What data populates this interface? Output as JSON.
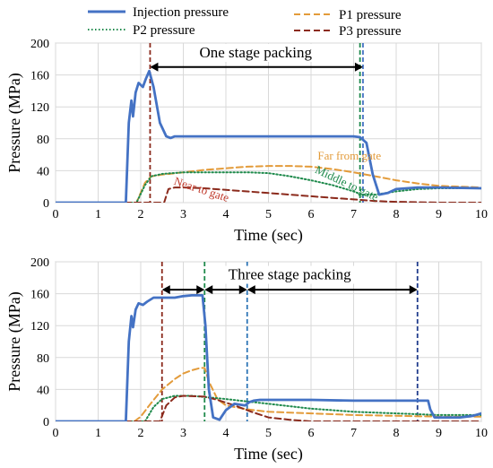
{
  "legend": {
    "items": [
      {
        "label": "Injection pressure",
        "color": "#4472c4",
        "style": "solid"
      },
      {
        "label": "P1 pressure",
        "color": "#e39b3a",
        "style": "dashed"
      },
      {
        "label": "P2 pressure",
        "color": "#1f8a4c",
        "style": "dotted"
      },
      {
        "label": "P3 pressure",
        "color": "#8b2a1c",
        "style": "dashed"
      }
    ]
  },
  "chart_data": [
    {
      "type": "line",
      "xlabel": "Time (sec)",
      "ylabel": "Pressure (MPa)",
      "xlim": [
        0,
        10
      ],
      "ylim": [
        0,
        200
      ],
      "xticks": [
        "0",
        "1",
        "2",
        "3",
        "4",
        "5",
        "6",
        "7",
        "8",
        "9",
        "10"
      ],
      "yticks": [
        "0",
        "40",
        "80",
        "120",
        "160",
        "200"
      ],
      "grid": true,
      "series": [
        {
          "name": "Injection pressure",
          "color": "#4472c4",
          "x": [
            0,
            1.65,
            1.72,
            1.78,
            1.82,
            1.88,
            1.95,
            2.05,
            2.12,
            2.2,
            2.3,
            2.45,
            2.6,
            2.7,
            2.8,
            3,
            4,
            5,
            6,
            7,
            7.15,
            7.3,
            7.45,
            7.6,
            7.8,
            8,
            8.5,
            9,
            10
          ],
          "y": [
            0,
            0,
            100,
            128,
            108,
            138,
            150,
            145,
            155,
            165,
            145,
            100,
            83,
            81,
            83,
            83,
            83,
            83,
            83,
            83,
            82,
            75,
            35,
            10,
            12,
            17,
            19,
            19,
            18
          ]
        },
        {
          "name": "P1 pressure",
          "color": "#e39b3a",
          "x": [
            0,
            1.9,
            2.1,
            2.25,
            2.5,
            3,
            3.5,
            4,
            4.5,
            5,
            5.5,
            6,
            6.5,
            7,
            7.5,
            8,
            8.5,
            9,
            10
          ],
          "y": [
            0,
            0,
            25,
            33,
            35,
            38,
            41,
            43,
            45,
            46,
            46,
            45,
            42,
            38,
            33,
            28,
            24,
            21,
            19
          ]
        },
        {
          "name": "P2 pressure",
          "color": "#1f8a4c",
          "x": [
            0,
            1.9,
            2.1,
            2.25,
            2.5,
            3,
            3.5,
            4,
            4.5,
            5,
            5.5,
            6,
            6.5,
            7,
            7.2,
            7.5,
            8,
            8.5,
            9,
            10
          ],
          "y": [
            0,
            0,
            22,
            33,
            36,
            38,
            38,
            38,
            38,
            37,
            33,
            28,
            22,
            14,
            10,
            10,
            14,
            17,
            18,
            18
          ]
        },
        {
          "name": "P3 pressure",
          "color": "#8b2a1c",
          "x": [
            0,
            2.55,
            2.65,
            2.8,
            3,
            3.5,
            4,
            4.5,
            5,
            5.5,
            6,
            6.5,
            7,
            7.5,
            8,
            9,
            10
          ],
          "y": [
            0,
            0,
            17,
            19,
            19,
            18,
            16,
            14,
            12,
            10,
            8,
            6,
            4,
            2,
            1,
            0,
            0
          ]
        }
      ],
      "vlines": [
        {
          "x": 2.22,
          "color": "#8b2a1c"
        },
        {
          "x": 7.15,
          "color": "#1f8a4c"
        },
        {
          "x": 7.22,
          "color": "#4472c4"
        }
      ],
      "arrows": [
        {
          "x1": 2.22,
          "x2": 7.22,
          "y": 170
        }
      ],
      "annotations": [
        {
          "text": "One stage packing",
          "x": 4.7,
          "y": 182,
          "color": "#000000",
          "rotate": 0
        },
        {
          "text": "Far from gate",
          "x": 6.9,
          "y": 54,
          "color": "#e39b3a",
          "rotate": 0
        },
        {
          "text": "Middle to gate",
          "x": 6.8,
          "y": 20,
          "color": "#1f8a4c",
          "rotate": 25
        },
        {
          "text": "Near to gate",
          "x": 3.4,
          "y": 12,
          "color": "#c0392b",
          "rotate": 18
        }
      ]
    },
    {
      "type": "line",
      "xlabel": "Time (sec)",
      "ylabel": "Pressure (MPa)",
      "xlim": [
        0,
        10
      ],
      "ylim": [
        0,
        200
      ],
      "xticks": [
        "0",
        "1",
        "2",
        "3",
        "4",
        "5",
        "6",
        "7",
        "8",
        "9",
        "10"
      ],
      "yticks": [
        "0",
        "40",
        "80",
        "120",
        "160",
        "200"
      ],
      "grid": true,
      "series": [
        {
          "name": "Injection pressure",
          "color": "#4472c4",
          "x": [
            0,
            1.65,
            1.72,
            1.78,
            1.82,
            1.88,
            1.95,
            2.05,
            2.15,
            2.3,
            2.5,
            2.8,
            3,
            3.2,
            3.45,
            3.52,
            3.6,
            3.7,
            3.85,
            4,
            4.2,
            4.45,
            4.55,
            4.65,
            4.8,
            5,
            6,
            7,
            8,
            8.75,
            8.8,
            8.9,
            9,
            9.5,
            9.8,
            10
          ],
          "y": [
            0,
            0,
            100,
            132,
            118,
            140,
            148,
            146,
            150,
            155,
            155,
            155,
            157,
            158,
            158,
            120,
            40,
            5,
            2,
            14,
            22,
            20,
            24,
            26,
            27,
            27,
            27,
            26,
            26,
            26,
            15,
            5,
            5,
            5,
            7,
            10
          ]
        },
        {
          "name": "P1 pressure",
          "color": "#e39b3a",
          "x": [
            0,
            1.85,
            2,
            2.2,
            2.5,
            2.8,
            3,
            3.2,
            3.4,
            3.5,
            3.6,
            3.8,
            4,
            4.5,
            5,
            6,
            7,
            8,
            9,
            10
          ],
          "y": [
            0,
            0,
            6,
            20,
            40,
            53,
            60,
            64,
            67,
            67,
            50,
            28,
            20,
            15,
            12,
            10,
            8,
            7,
            6,
            6
          ]
        },
        {
          "name": "P2 pressure",
          "color": "#1f8a4c",
          "x": [
            0,
            2.1,
            2.3,
            2.5,
            2.8,
            3.2,
            3.6,
            4,
            4.5,
            5,
            5.5,
            6,
            6.5,
            7,
            7.5,
            8,
            8.5,
            9,
            9.5,
            10
          ],
          "y": [
            0,
            0,
            18,
            28,
            32,
            32,
            30,
            28,
            25,
            22,
            19,
            16,
            14,
            12,
            11,
            10,
            9,
            8,
            8,
            8
          ]
        },
        {
          "name": "P3 pressure",
          "color": "#8b2a1c",
          "x": [
            0,
            2.45,
            2.6,
            2.8,
            3,
            3.5,
            3.8,
            4.2,
            4.6,
            5,
            5.5,
            6,
            7,
            8,
            10
          ],
          "y": [
            0,
            0,
            20,
            30,
            32,
            31,
            27,
            20,
            12,
            5,
            2,
            0,
            0,
            0,
            0
          ]
        }
      ],
      "vlines": [
        {
          "x": 2.5,
          "color": "#8b2a1c"
        },
        {
          "x": 3.5,
          "color": "#1f8a4c"
        },
        {
          "x": 4.5,
          "color": "#2e75b6"
        },
        {
          "x": 8.5,
          "color": "#1f3b8c"
        }
      ],
      "arrows": [
        {
          "x1": 2.5,
          "x2": 3.5,
          "y": 165
        },
        {
          "x1": 3.5,
          "x2": 4.5,
          "y": 165
        },
        {
          "x1": 4.5,
          "x2": 8.5,
          "y": 165
        }
      ],
      "annotations": [
        {
          "text": "Three stage packing",
          "x": 5.5,
          "y": 178,
          "color": "#000000",
          "rotate": 0
        }
      ]
    }
  ]
}
